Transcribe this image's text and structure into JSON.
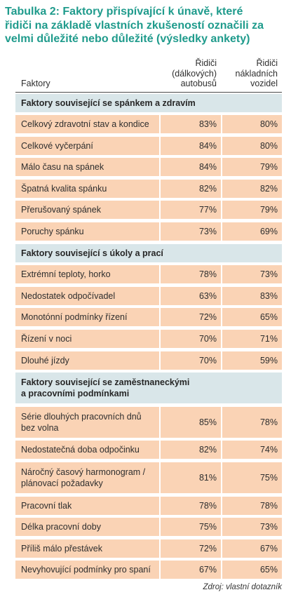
{
  "title": "Tabulka 2: Faktory přispívající k únavě, které\nřidiči na základě vlastních zkušeností označili za\nvelmi důležité nebo důležité (výsledky ankety)",
  "columns": {
    "factor": "Faktory",
    "bus": "Řidiči\n(dálkových)\nautobusů",
    "truck": "Řidiči\nnákladních\nvozidel"
  },
  "sections": [
    {
      "title": "Faktory související se spánkem a zdravím",
      "rows": [
        {
          "label": "Celkový zdravotní stav a kondice",
          "bus": "83%",
          "truck": "80%"
        },
        {
          "label": "Celkové vyčerpání",
          "bus": "84%",
          "truck": "80%"
        },
        {
          "label": "Málo času na spánek",
          "bus": "84%",
          "truck": "79%"
        },
        {
          "label": "Špatná kvalita spánku",
          "bus": "82%",
          "truck": "82%"
        },
        {
          "label": "Přerušovaný spánek",
          "bus": "77%",
          "truck": "79%"
        },
        {
          "label": "Poruchy spánku",
          "bus": "73%",
          "truck": "69%"
        }
      ]
    },
    {
      "title": "Faktory související s úkoly a prací",
      "rows": [
        {
          "label": "Extrémní teploty, horko",
          "bus": "78%",
          "truck": "73%"
        },
        {
          "label": "Nedostatek odpočívadel",
          "bus": "63%",
          "truck": "83%"
        },
        {
          "label": "Monotónní podmínky řízení",
          "bus": "72%",
          "truck": "65%"
        },
        {
          "label": "Řízení v noci",
          "bus": "70%",
          "truck": "71%"
        },
        {
          "label": "Dlouhé jízdy",
          "bus": "70%",
          "truck": "59%"
        }
      ]
    },
    {
      "title": "Faktory související se zaměstnaneckými\na pracovními podmínkami",
      "rows": [
        {
          "label": "Série dlouhých pracovních dnů\nbez volna",
          "bus": "85%",
          "truck": "78%"
        },
        {
          "label": "Nedostatečná doba odpočinku",
          "bus": "82%",
          "truck": "74%"
        },
        {
          "label": "Náročný časový harmonogram /\nplánovací požadavky",
          "bus": "81%",
          "truck": "75%"
        },
        {
          "label": "Pracovní tlak",
          "bus": "78%",
          "truck": "78%"
        },
        {
          "label": "Délka pracovní doby",
          "bus": "75%",
          "truck": "73%"
        },
        {
          "label": "Příliš málo přestávek",
          "bus": "72%",
          "truck": "67%"
        },
        {
          "label": "Nevyhovující podmínky pro spaní",
          "bus": "67%",
          "truck": "65%"
        }
      ]
    }
  ],
  "source": "Zdroj: vlastní dotazník",
  "colors": {
    "title": "#1f9b8c",
    "section_bg": "#d9e6e9",
    "row_bg": "#fad3b5",
    "rule": "#4a4a4a",
    "text": "#2e2e2e"
  }
}
